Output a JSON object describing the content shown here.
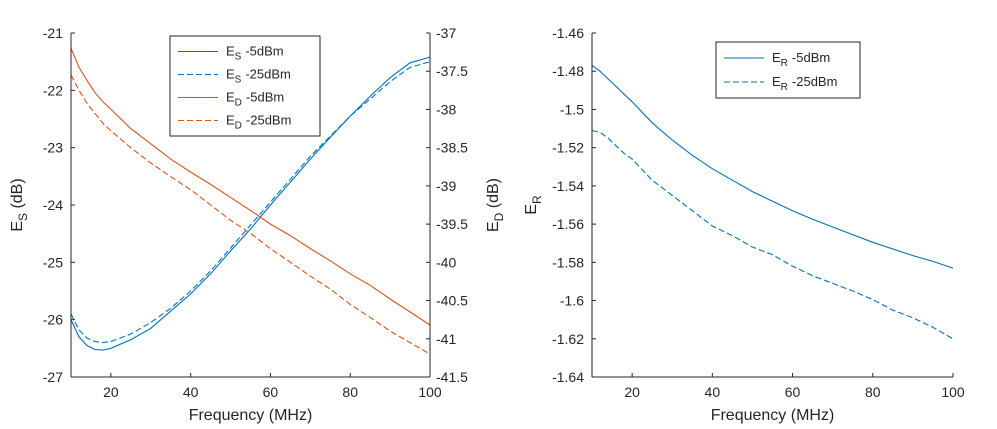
{
  "figure_caption": "",
  "chart_data": [
    {
      "type": "line",
      "id": "left",
      "xlabel": "Frequency (MHz)",
      "ylabel_left": {
        "main": "E",
        "sub": "S",
        "rest": " (dB)"
      },
      "ylabel_right": {
        "main": "E",
        "sub": "D",
        "rest": " (dB)"
      },
      "xlim": [
        10,
        100
      ],
      "ylim_left": [
        -27,
        -21
      ],
      "ylim_right": [
        -41.5,
        -37
      ],
      "xticks": [
        20,
        40,
        60,
        80,
        100
      ],
      "yticks_left": [
        -21,
        -22,
        -23,
        -24,
        -25,
        -26,
        -27
      ],
      "yticks_right": [
        -37,
        -37.5,
        -38,
        -38.5,
        -39,
        -39.5,
        -40,
        -40.5,
        -41,
        -41.5
      ],
      "grid": false,
      "legend_position": "top-center",
      "series": [
        {
          "name": "-5dBm",
          "legend_main": "E",
          "legend_sub": "S",
          "axis": "left",
          "color": "#0072BD",
          "dash": "solid",
          "x": [
            10,
            12,
            14,
            16,
            18,
            20,
            25,
            30,
            35,
            40,
            45,
            50,
            55,
            60,
            65,
            70,
            75,
            80,
            85,
            90,
            95,
            100
          ],
          "y": [
            -26.0,
            -26.3,
            -26.45,
            -26.52,
            -26.53,
            -26.5,
            -26.35,
            -26.15,
            -25.85,
            -25.55,
            -25.2,
            -24.8,
            -24.42,
            -24.0,
            -23.6,
            -23.2,
            -22.82,
            -22.45,
            -22.1,
            -21.78,
            -21.52,
            -21.42
          ]
        },
        {
          "name": "-25dBm",
          "legend_main": "E",
          "legend_sub": "S",
          "axis": "left",
          "color": "#0072BD",
          "dash": "dashed",
          "x": [
            10,
            12,
            14,
            16,
            18,
            20,
            25,
            30,
            35,
            40,
            45,
            50,
            55,
            60,
            65,
            70,
            75,
            80,
            85,
            90,
            95,
            100
          ],
          "y": [
            -25.9,
            -26.18,
            -26.32,
            -26.38,
            -26.4,
            -26.38,
            -26.25,
            -26.05,
            -25.8,
            -25.5,
            -25.15,
            -24.75,
            -24.35,
            -23.95,
            -23.55,
            -23.15,
            -22.8,
            -22.45,
            -22.15,
            -21.85,
            -21.6,
            -21.5
          ]
        },
        {
          "name": "-5dBm",
          "legend_main": "E",
          "legend_sub": "D",
          "axis": "right",
          "color": "#D95319",
          "dash": "solid",
          "x": [
            10,
            12,
            14,
            16,
            18,
            20,
            25,
            30,
            35,
            40,
            45,
            50,
            55,
            60,
            65,
            70,
            75,
            80,
            85,
            90,
            95,
            100
          ],
          "y": [
            -37.2,
            -37.45,
            -37.62,
            -37.78,
            -37.9,
            -38.0,
            -38.25,
            -38.45,
            -38.65,
            -38.82,
            -38.98,
            -39.15,
            -39.32,
            -39.5,
            -39.65,
            -39.82,
            -39.98,
            -40.15,
            -40.3,
            -40.48,
            -40.65,
            -40.82
          ]
        },
        {
          "name": "-25dBm",
          "legend_main": "E",
          "legend_sub": "D",
          "axis": "right",
          "color": "#D95319",
          "dash": "dashed",
          "x": [
            10,
            12,
            14,
            16,
            18,
            20,
            25,
            30,
            35,
            40,
            45,
            50,
            55,
            60,
            65,
            70,
            75,
            80,
            85,
            90,
            95,
            100
          ],
          "y": [
            -37.55,
            -37.75,
            -37.92,
            -38.05,
            -38.18,
            -38.28,
            -38.5,
            -38.7,
            -38.88,
            -39.05,
            -39.25,
            -39.45,
            -39.62,
            -39.82,
            -40.0,
            -40.18,
            -40.35,
            -40.55,
            -40.72,
            -40.9,
            -41.05,
            -41.2
          ]
        }
      ]
    },
    {
      "type": "line",
      "id": "right",
      "xlabel": "Frequency (MHz)",
      "ylabel_left": {
        "main": "E",
        "sub": "R",
        "rest": ""
      },
      "xlim": [
        10,
        100
      ],
      "ylim_left": [
        -1.64,
        -1.46
      ],
      "xticks": [
        20,
        40,
        60,
        80,
        100
      ],
      "yticks_left": [
        -1.46,
        -1.48,
        -1.5,
        -1.52,
        -1.54,
        -1.56,
        -1.58,
        -1.6,
        -1.62,
        -1.64
      ],
      "grid": false,
      "legend_position": "top-center",
      "series": [
        {
          "name": "-5dBm",
          "legend_main": "E",
          "legend_sub": "R",
          "axis": "left",
          "color": "#0072BD",
          "dash": "solid",
          "x": [
            10,
            12,
            14,
            16,
            18,
            20,
            25,
            30,
            35,
            40,
            45,
            50,
            55,
            60,
            65,
            70,
            75,
            80,
            85,
            90,
            95,
            100
          ],
          "y": [
            -1.477,
            -1.48,
            -1.484,
            -1.488,
            -1.492,
            -1.496,
            -1.507,
            -1.516,
            -1.524,
            -1.531,
            -1.537,
            -1.543,
            -1.548,
            -1.553,
            -1.5575,
            -1.5615,
            -1.5655,
            -1.5695,
            -1.573,
            -1.5765,
            -1.5795,
            -1.583
          ]
        },
        {
          "name": "-25dBm",
          "legend_main": "E",
          "legend_sub": "R",
          "axis": "left",
          "color": "#0072BD",
          "dash": "dashed",
          "x": [
            10,
            12,
            14,
            16,
            18,
            20,
            25,
            30,
            35,
            40,
            45,
            50,
            55,
            60,
            65,
            70,
            75,
            80,
            85,
            90,
            95,
            100
          ],
          "y": [
            -1.511,
            -1.512,
            -1.515,
            -1.519,
            -1.523,
            -1.526,
            -1.537,
            -1.545,
            -1.553,
            -1.561,
            -1.566,
            -1.572,
            -1.576,
            -1.582,
            -1.587,
            -1.591,
            -1.595,
            -1.5995,
            -1.605,
            -1.609,
            -1.614,
            -1.62
          ]
        }
      ]
    }
  ]
}
